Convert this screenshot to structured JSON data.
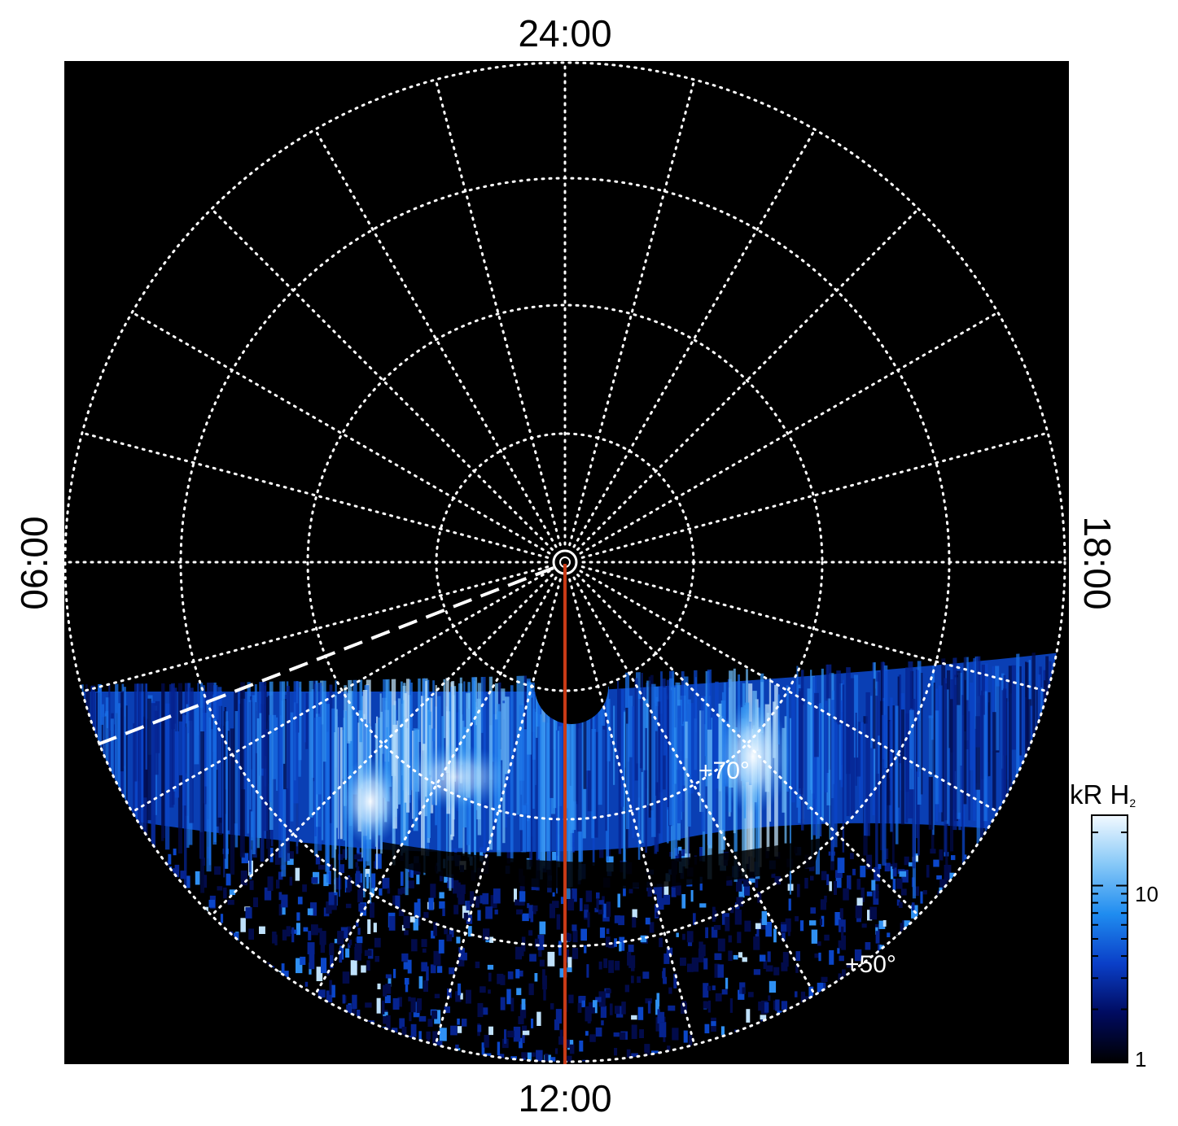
{
  "local_time_labels": {
    "top": "24:00",
    "bottom": "12:00",
    "left": "06:00",
    "right": "18:00"
  },
  "latitude_labels": {
    "inner": "+70°",
    "outer": "+50°"
  },
  "colorbar": {
    "title_main": "kR H",
    "title_sub": "2",
    "ticks": [
      "1",
      "10"
    ],
    "tick_values": [
      1,
      10
    ],
    "range": [
      1,
      25
    ],
    "scale": "log",
    "colors": [
      "#000000",
      "#000b60",
      "#0a3fc8",
      "#1f8cf0",
      "#86c8f7",
      "#f2f9ff"
    ]
  },
  "colors": {
    "background": "#000000",
    "grid": "#ffffff",
    "meridian": "#c83a16",
    "dashed_line": "#ffffff"
  }
}
